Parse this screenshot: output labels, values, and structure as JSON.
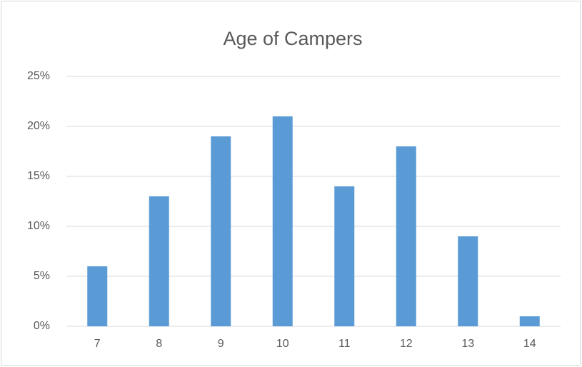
{
  "chart_data": {
    "type": "bar",
    "title": "Age of Campers",
    "categories": [
      "7",
      "8",
      "9",
      "10",
      "11",
      "12",
      "13",
      "14"
    ],
    "values": [
      6,
      13,
      19,
      21,
      14,
      18,
      9,
      1
    ],
    "color": "#5b9bd5",
    "ylim": [
      0,
      25
    ],
    "yticks": [
      {
        "value": 0,
        "label": "0%"
      },
      {
        "value": 5,
        "label": "5%"
      },
      {
        "value": 10,
        "label": "10%"
      },
      {
        "value": 15,
        "label": "15%"
      },
      {
        "value": 20,
        "label": "20%"
      },
      {
        "value": 25,
        "label": "25%"
      }
    ],
    "grid": true
  }
}
